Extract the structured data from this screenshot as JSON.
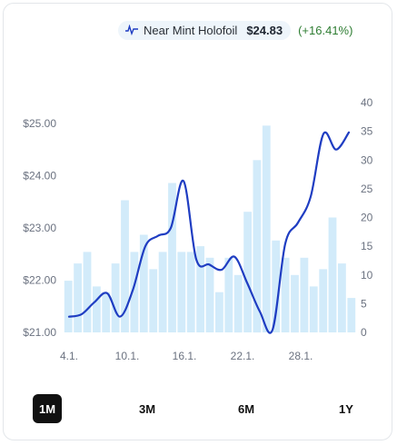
{
  "legend": {
    "label": "Near Mint Holofoil",
    "price": "$24.83",
    "change": "(+16.41%)"
  },
  "colors": {
    "line": "#1f3dc2",
    "bars": "#d2ebfa",
    "change": "#2e7d32",
    "active_range": "#111111"
  },
  "ranges": [
    {
      "label": "1M",
      "active": true
    },
    {
      "label": "3M",
      "active": false
    },
    {
      "label": "6M",
      "active": false
    },
    {
      "label": "1Y",
      "active": false
    }
  ],
  "chart_data": {
    "type": "bar+line",
    "x_ticks": [
      "4.1.",
      "10.1.",
      "16.1.",
      "22.1.",
      "28.1."
    ],
    "left_axis": {
      "ticks": [
        "$21.00",
        "$22.00",
        "$23.00",
        "$24.00",
        "$25.00"
      ],
      "range": [
        21,
        25.4
      ]
    },
    "right_axis": {
      "ticks": [
        "0",
        "5",
        "10",
        "15",
        "20",
        "25",
        "30",
        "35",
        "40"
      ],
      "range": [
        0,
        40
      ]
    },
    "bars": [
      9,
      12,
      14,
      8,
      7,
      12,
      23,
      14,
      17,
      11,
      14,
      26,
      14,
      14,
      15,
      13,
      7,
      13,
      10,
      21,
      30,
      36,
      16,
      13,
      10,
      13,
      8,
      11,
      20,
      12,
      6
    ],
    "line": [
      21.3,
      21.35,
      21.58,
      21.75,
      21.3,
      21.8,
      22.65,
      22.85,
      23.0,
      23.9,
      22.4,
      22.3,
      22.2,
      22.45,
      21.95,
      21.4,
      21.05,
      22.7,
      23.1,
      23.6,
      24.8,
      24.5,
      24.83
    ]
  }
}
